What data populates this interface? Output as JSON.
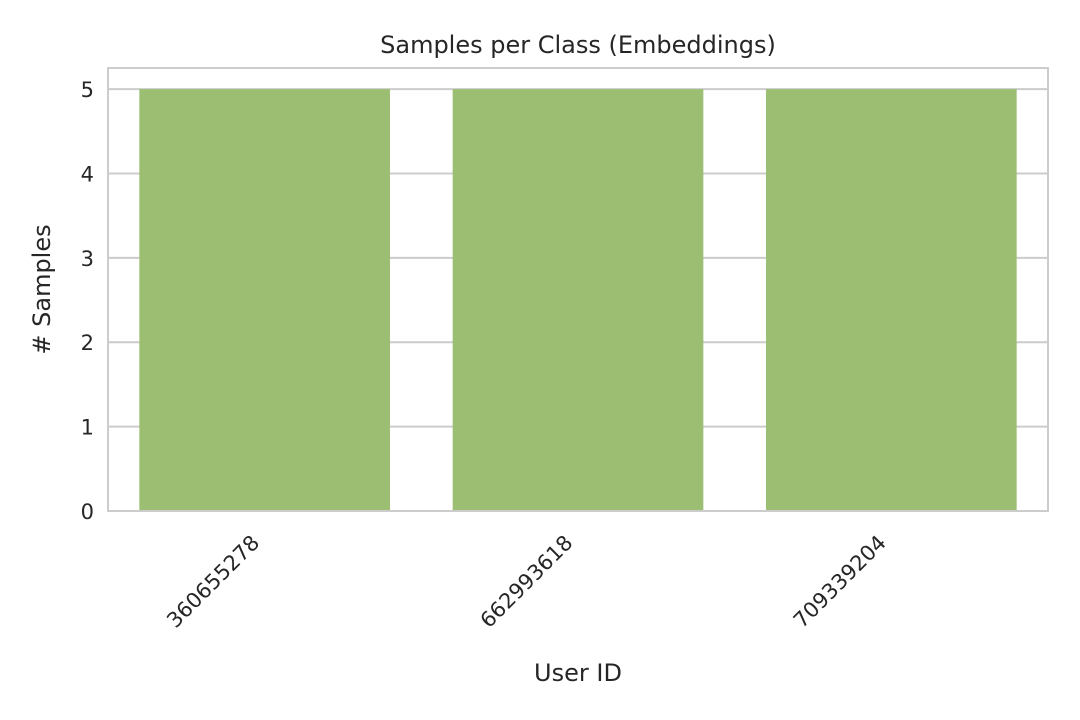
{
  "chart_data": {
    "type": "bar",
    "title": "Samples per Class (Embeddings)",
    "xlabel": "User ID",
    "ylabel": "# Samples",
    "categories": [
      "360655278",
      "662993618",
      "709339204"
    ],
    "values": [
      5,
      5,
      5
    ],
    "ylim": [
      0,
      5.25
    ],
    "yticks": [
      "0",
      "1",
      "2",
      "3",
      "4",
      "5"
    ],
    "grid": true,
    "legend": "none",
    "bar_color": "#9bbe73",
    "grid_color": "#cccccc",
    "spine_color": "#cccccc",
    "text_color": "#262626"
  }
}
